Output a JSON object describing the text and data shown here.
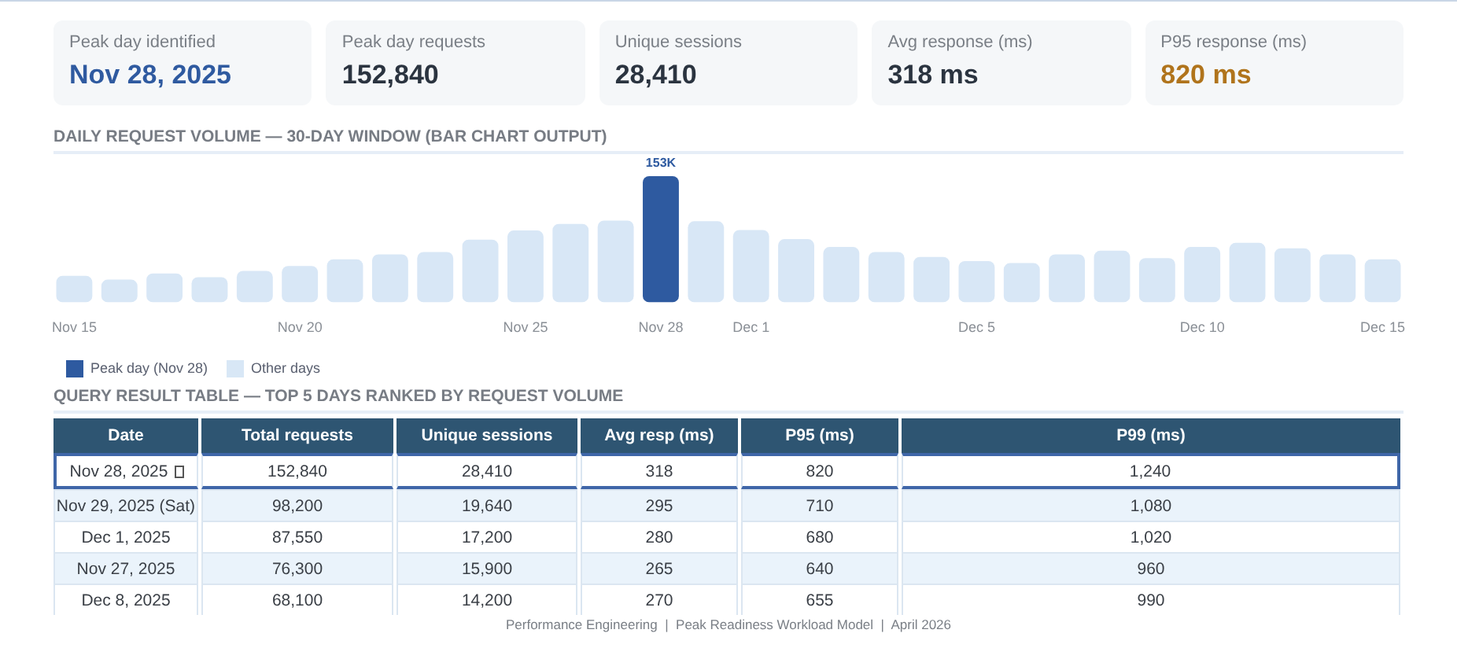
{
  "chart_data": [
    {
      "type": "other",
      "categories": [
        "Peak day identified",
        "Peak day requests",
        "Unique sessions",
        "Avg response (ms)",
        "P95 response (ms)"
      ],
      "value_labels": [
        "Nov 28, 2025",
        "152,840",
        "28,410",
        "318 ms",
        "820 ms"
      ]
    },
    {
      "type": "bar",
      "title": "DAILY REQUEST VOLUME — 30-DAY WINDOW (BAR CHART OUTPUT)",
      "legend": "bottom",
      "categories": [
        "Nov 15",
        null,
        null,
        null,
        null,
        "Nov 20",
        null,
        null,
        null,
        null,
        "Nov 25",
        null,
        null,
        "Nov 28",
        null,
        "Dec 1",
        null,
        null,
        null,
        null,
        "Dec 5",
        null,
        null,
        null,
        null,
        "Dec 10",
        null,
        null,
        null,
        "Dec 15"
      ],
      "series": [
        {
          "name": "Peak day (Nov 28)",
          "color": "#2e5aa0",
          "values": [
            null,
            null,
            null,
            null,
            null,
            null,
            null,
            null,
            null,
            null,
            null,
            null,
            null,
            152840,
            null,
            null,
            null,
            null,
            null,
            null,
            null,
            null,
            null,
            null,
            null,
            null,
            null,
            null,
            null,
            null
          ],
          "value_labels": [
            null,
            null,
            null,
            null,
            null,
            null,
            null,
            null,
            null,
            null,
            null,
            null,
            null,
            "153K",
            null,
            null,
            null,
            null,
            null,
            null,
            null,
            null,
            null,
            null,
            null,
            null,
            null,
            null,
            null,
            null
          ]
        },
        {
          "name": "Other days",
          "color": "#d8e7f6",
          "values": [
            32000,
            27500,
            35000,
            30500,
            38000,
            44000,
            52000,
            58000,
            61000,
            76000,
            87000,
            95000,
            99000,
            null,
            98200,
            87550,
            76500,
            67000,
            61000,
            55000,
            50000,
            47500,
            58000,
            62500,
            53500,
            67000,
            72000,
            65500,
            58000,
            52000
          ]
        }
      ]
    },
    {
      "type": "other",
      "title": "QUERY RESULT TABLE — TOP 5 DAYS RANKED BY REQUEST VOLUME",
      "categories": [
        "Date",
        "Total requests",
        "Unique sessions",
        "Avg resp (ms)",
        "P95 (ms)",
        "P99 (ms)"
      ],
      "cell_labels": [
        [
          "Nov 28, 2025",
          "152,840",
          "28,410",
          "318",
          "820",
          "1,240"
        ],
        [
          "Nov 29, 2025 (Sat)",
          "98,200",
          "19,640",
          "295",
          "710",
          "1,080"
        ],
        [
          "Dec 1, 2025",
          "87,550",
          "17,200",
          "280",
          "680",
          "1,020"
        ],
        [
          "Nov 27, 2025",
          "76,300",
          "15,900",
          "265",
          "640",
          "960"
        ],
        [
          "Dec 8, 2025",
          "68,100",
          "14,200",
          "270",
          "655",
          "990"
        ]
      ],
      "annotations": [
        "Performance Engineering  |  Peak Readiness Workload Model  |  April 2026"
      ]
    }
  ]
}
